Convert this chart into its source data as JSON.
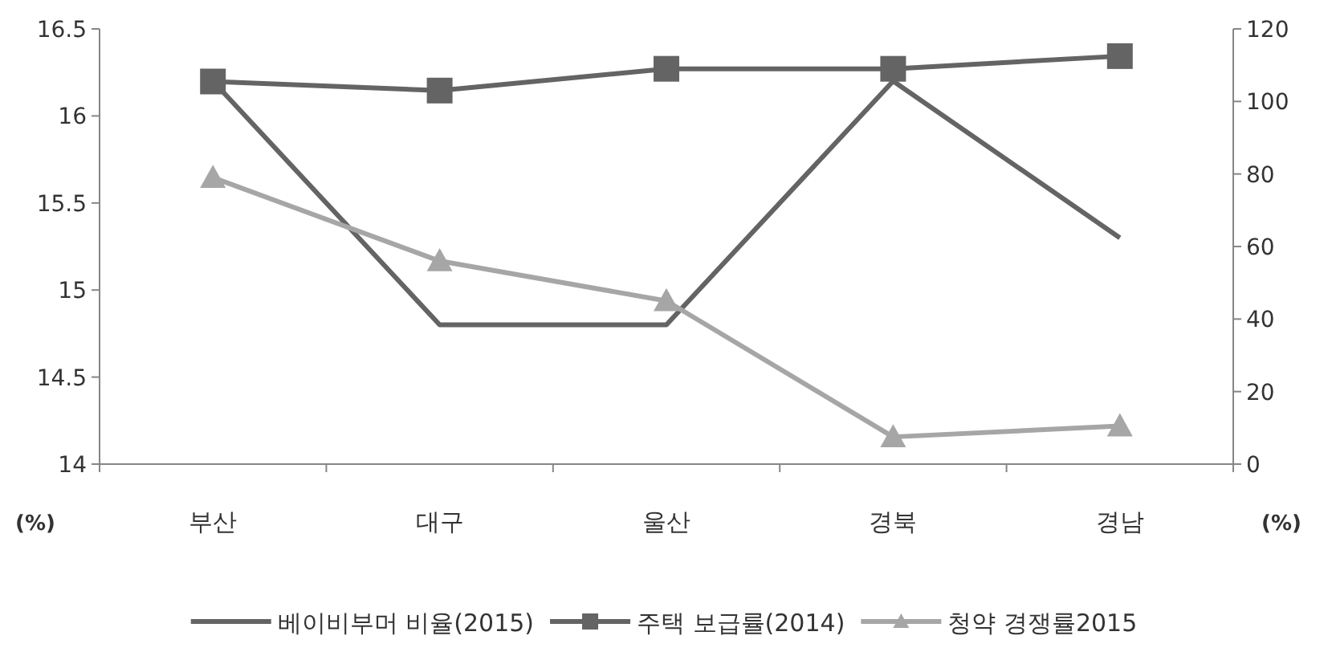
{
  "chart_data": {
    "type": "line",
    "ylabel": "(%)",
    "y2label": "(%)",
    "categories": [
      "부산",
      "대구",
      "울산",
      "경북",
      "경남"
    ],
    "series": [
      {
        "name": "베이비부머 비율(2015)",
        "color": "#646464",
        "marker": "none",
        "values": [
          16.2,
          14.8,
          14.8,
          16.2,
          15.3
        ]
      },
      {
        "name": "주택 보급률(2014)",
        "color": "#646464",
        "marker": "square",
        "axis": "y2",
        "values": [
          105.5,
          103,
          109,
          109,
          112.5
        ]
      },
      {
        "name": "청약 경쟁률2015",
        "color": "#a6a6a6",
        "marker": "triangle",
        "axis": "y2",
        "values": [
          79,
          56,
          45,
          7.5,
          10.5
        ]
      }
    ],
    "ylim": [
      14,
      16.5
    ],
    "yticks": [
      14,
      14.5,
      15,
      15.5,
      16,
      16.5
    ],
    "y2lim": [
      0,
      120
    ],
    "y2ticks": [
      0,
      20,
      40,
      60,
      80,
      100,
      120
    ],
    "grid": false,
    "legend": "bottom"
  }
}
